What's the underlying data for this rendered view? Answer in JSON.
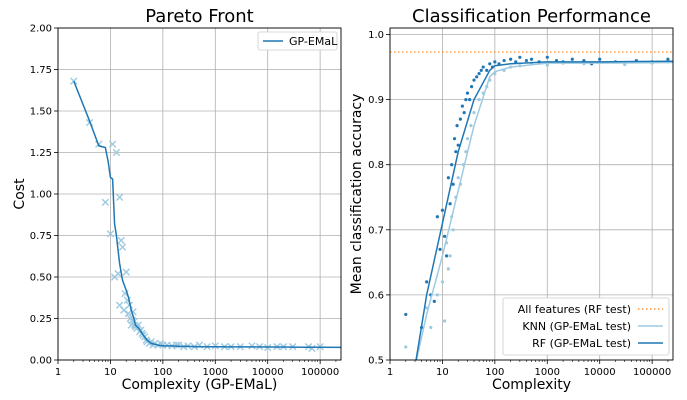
{
  "chart_data": [
    {
      "type": "line",
      "title": "Pareto Front",
      "xlabel": "Complexity (GP-EMaL)",
      "ylabel": "Cost",
      "xscale": "log",
      "xlim": [
        1,
        250000
      ],
      "ylim": [
        0,
        2.0
      ],
      "xticks": [
        1,
        10,
        100,
        1000,
        10000,
        100000
      ],
      "xtick_labels": [
        "1",
        "10",
        "100",
        "1000",
        "10000",
        "100000"
      ],
      "yticks": [
        0.0,
        0.25,
        0.5,
        0.75,
        1.0,
        1.25,
        1.5,
        1.75,
        2.0
      ],
      "ytick_labels": [
        "0.00",
        "0.25",
        "0.50",
        "0.75",
        "1.00",
        "1.25",
        "1.50",
        "1.75",
        "2.00"
      ],
      "grid": true,
      "legend_position": "top-right",
      "colors": {
        "line": "#1f77b4",
        "markers": "#9ecae1"
      },
      "series": [
        {
          "name": "GP-EMaL",
          "style": "line",
          "x": [
            2,
            4,
            6,
            8,
            9,
            10,
            11,
            12,
            13,
            14,
            15,
            17,
            20,
            22,
            25,
            28,
            30,
            35,
            40,
            50,
            60,
            80,
            100,
            150,
            200,
            300,
            500,
            1000,
            2000,
            5000,
            10000,
            20000,
            50000,
            100000,
            250000
          ],
          "y": [
            1.68,
            1.44,
            1.29,
            1.28,
            1.2,
            1.1,
            1.09,
            0.82,
            0.75,
            0.66,
            0.58,
            0.48,
            0.42,
            0.38,
            0.3,
            0.25,
            0.21,
            0.19,
            0.16,
            0.12,
            0.1,
            0.09,
            0.085,
            0.085,
            0.083,
            0.082,
            0.08,
            0.08,
            0.079,
            0.079,
            0.078,
            0.078,
            0.077,
            0.077,
            0.076
          ]
        },
        {
          "name": "",
          "style": "x-markers",
          "x": [
            2,
            4,
            6,
            8,
            10,
            11,
            12,
            13,
            14,
            15,
            15,
            16,
            17,
            18,
            19,
            20,
            21,
            22,
            23,
            24,
            25,
            26,
            27,
            28,
            29,
            30,
            32,
            34,
            36,
            38,
            40,
            42,
            45,
            48,
            50,
            55,
            60,
            65,
            70,
            80,
            90,
            100,
            120,
            150,
            180,
            200,
            250,
            300,
            400,
            500,
            700,
            1000,
            1500,
            2000,
            3000,
            5000,
            7000,
            10000,
            15000,
            20000,
            30000,
            60000,
            70000,
            100000
          ],
          "y": [
            1.68,
            1.43,
            1.3,
            0.95,
            0.76,
            1.3,
            0.5,
            1.25,
            0.52,
            0.98,
            0.33,
            0.72,
            0.68,
            0.3,
            0.4,
            0.53,
            0.36,
            0.28,
            0.33,
            0.25,
            0.21,
            0.24,
            0.29,
            0.23,
            0.21,
            0.2,
            0.19,
            0.21,
            0.17,
            0.18,
            0.16,
            0.15,
            0.14,
            0.12,
            0.11,
            0.1,
            0.11,
            0.09,
            0.1,
            0.09,
            0.1,
            0.09,
            0.09,
            0.085,
            0.09,
            0.09,
            0.08,
            0.085,
            0.08,
            0.09,
            0.08,
            0.085,
            0.08,
            0.08,
            0.08,
            0.085,
            0.08,
            0.075,
            0.08,
            0.08,
            0.08,
            0.08,
            0.07,
            0.08
          ]
        }
      ]
    },
    {
      "type": "line",
      "title": "Classification Performance",
      "xlabel": "Complexity",
      "ylabel": "Mean classification accuracy",
      "xscale": "log",
      "xlim": [
        1,
        250000
      ],
      "ylim": [
        0.5,
        1.01
      ],
      "xticks": [
        1,
        10,
        100,
        1000,
        10000,
        100000
      ],
      "xtick_labels": [
        "1",
        "10",
        "100",
        "1000",
        "10000",
        "100000"
      ],
      "yticks": [
        0.5,
        0.6,
        0.7,
        0.8,
        0.9,
        1.0
      ],
      "ytick_labels": [
        "0.5",
        "0.6",
        "0.7",
        "0.8",
        "0.9",
        "1.0"
      ],
      "grid": true,
      "legend_position": "bottom-right",
      "colors": {
        "rf": "#1f77b4",
        "knn": "#9ecae1",
        "all": "#ff7f0e"
      },
      "series": [
        {
          "name": "All features (RF test)",
          "style": "dotted-hline",
          "y": 0.973
        },
        {
          "name": "KNN (GP-EMaL test)",
          "style": "line",
          "x": [
            3,
            5,
            10,
            20,
            40,
            80,
            100,
            200,
            1000,
            10000,
            250000
          ],
          "y": [
            0.49,
            0.57,
            0.66,
            0.76,
            0.86,
            0.935,
            0.943,
            0.95,
            0.956,
            0.956,
            0.957
          ]
        },
        {
          "name": "RF (GP-EMaL test)",
          "style": "line",
          "x": [
            3,
            5,
            10,
            20,
            40,
            80,
            100,
            200,
            1000,
            10000,
            250000
          ],
          "y": [
            0.49,
            0.6,
            0.71,
            0.82,
            0.9,
            0.945,
            0.952,
            0.955,
            0.958,
            0.958,
            0.959
          ]
        },
        {
          "name": "",
          "style": "dots",
          "color": "rf",
          "x": [
            2,
            4,
            5,
            6,
            7,
            8,
            9,
            10,
            11,
            12,
            13,
            14,
            15,
            16,
            17,
            18,
            19,
            20,
            22,
            24,
            26,
            28,
            30,
            33,
            36,
            40,
            45,
            50,
            55,
            60,
            70,
            80,
            90,
            100,
            120,
            150,
            200,
            250,
            300,
            400,
            500,
            700,
            1000,
            1500,
            2000,
            3000,
            5000,
            7000,
            10000,
            20000,
            50000,
            100000,
            200000
          ],
          "y": [
            0.57,
            0.55,
            0.62,
            0.6,
            0.59,
            0.72,
            0.67,
            0.73,
            0.69,
            0.66,
            0.78,
            0.74,
            0.8,
            0.77,
            0.84,
            0.82,
            0.86,
            0.83,
            0.87,
            0.89,
            0.88,
            0.9,
            0.91,
            0.9,
            0.92,
            0.93,
            0.935,
            0.94,
            0.945,
            0.95,
            0.945,
            0.955,
            0.95,
            0.958,
            0.955,
            0.96,
            0.962,
            0.958,
            0.965,
            0.96,
            0.962,
            0.958,
            0.965,
            0.96,
            0.958,
            0.962,
            0.96,
            0.955,
            0.962,
            0.958,
            0.96,
            0.958,
            0.962
          ]
        },
        {
          "name": "",
          "style": "dots",
          "color": "knn",
          "x": [
            2,
            5,
            6,
            8,
            10,
            11,
            12,
            13,
            14,
            15,
            16,
            18,
            20,
            22,
            25,
            28,
            30,
            35,
            40,
            50,
            60,
            70,
            80,
            100,
            150,
            200,
            300,
            500,
            1000,
            2000,
            5000,
            10000,
            30000,
            100000,
            200000
          ],
          "y": [
            0.52,
            0.58,
            0.55,
            0.6,
            0.62,
            0.56,
            0.68,
            0.64,
            0.66,
            0.72,
            0.7,
            0.75,
            0.78,
            0.77,
            0.8,
            0.82,
            0.84,
            0.86,
            0.88,
            0.9,
            0.91,
            0.92,
            0.93,
            0.94,
            0.945,
            0.95,
            0.952,
            0.955,
            0.953,
            0.956,
            0.955,
            0.957,
            0.954,
            0.956,
            0.958
          ]
        }
      ]
    }
  ]
}
